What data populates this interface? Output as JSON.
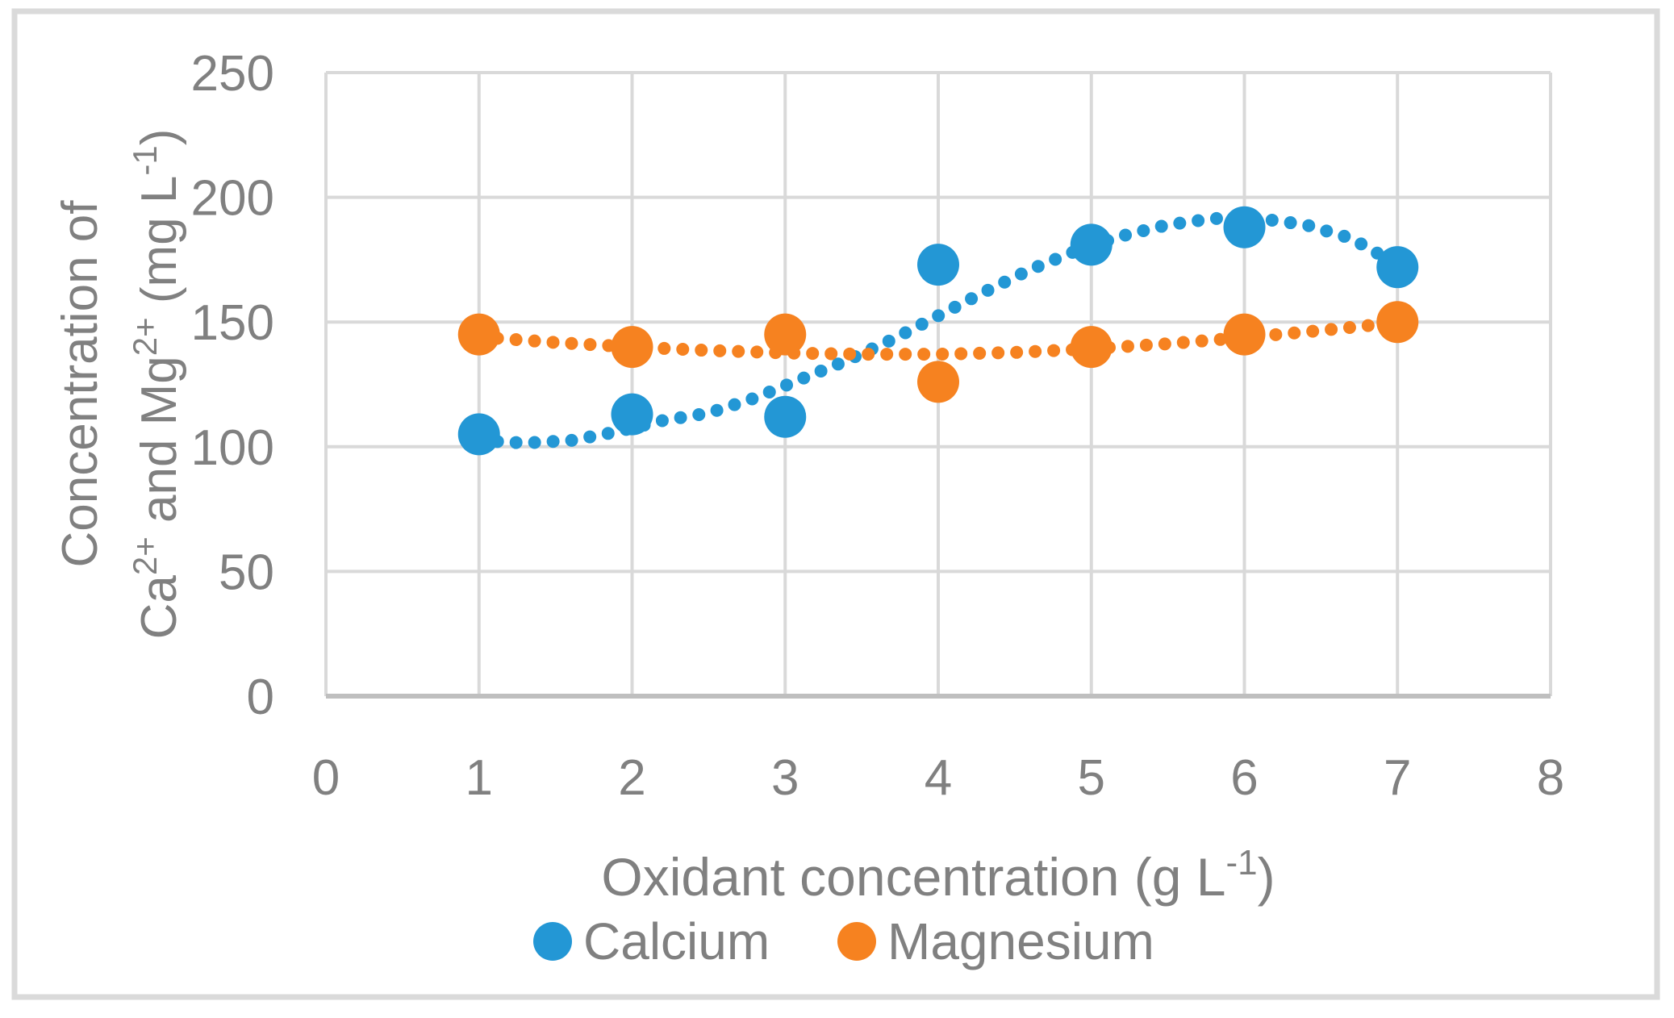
{
  "chart_data": {
    "type": "scatter",
    "title": "",
    "xlabel": "Oxidant concentration (g L-1)",
    "xlabel_parts": [
      "Oxidant concentration (g L",
      "-1",
      ")"
    ],
    "ylabel": "Concentration of Ca2+ and Mg2+ (mg L-1)",
    "ylabel_line1": "Concentration of",
    "ylabel_line2_parts": [
      "Ca",
      "2+",
      " and Mg",
      "2+",
      " (mg L",
      "-1",
      ")"
    ],
    "x": [
      1,
      2,
      3,
      4,
      5,
      6,
      7
    ],
    "xticks": [
      0,
      1,
      2,
      3,
      4,
      5,
      6,
      7,
      8
    ],
    "yticks": [
      0,
      50,
      100,
      150,
      200,
      250
    ],
    "xlim": [
      0,
      8
    ],
    "ylim": [
      0,
      250
    ],
    "grid": true,
    "legend_position": "bottom",
    "series": [
      {
        "name": "Calcium",
        "color": "#2397D5",
        "values": [
          105,
          113,
          112,
          173,
          181,
          188,
          172
        ],
        "trend": [
          [
            1.0,
            102.5
          ],
          [
            1.3,
            101.5
          ],
          [
            1.6,
            102.5
          ],
          [
            1.9,
            106
          ],
          [
            2.2,
            110.5
          ],
          [
            2.5,
            113.5
          ],
          [
            2.8,
            119.5
          ],
          [
            3.1,
            127
          ],
          [
            3.4,
            134.5
          ],
          [
            3.7,
            143
          ],
          [
            4.0,
            152.5
          ],
          [
            4.3,
            162
          ],
          [
            4.6,
            171
          ],
          [
            4.9,
            178.5
          ],
          [
            5.2,
            184.5
          ],
          [
            5.5,
            189
          ],
          [
            5.8,
            191.5
          ],
          [
            6.1,
            191.5
          ],
          [
            6.4,
            189
          ],
          [
            6.7,
            183.5
          ],
          [
            7.0,
            173
          ]
        ]
      },
      {
        "name": "Magnesium",
        "color": "#F68220",
        "values": [
          145,
          140,
          145,
          126,
          140,
          145,
          150
        ],
        "trend": [
          [
            1.0,
            144
          ],
          [
            1.5,
            141.8
          ],
          [
            2.0,
            140
          ],
          [
            2.5,
            138.6
          ],
          [
            3.0,
            137.6
          ],
          [
            3.5,
            137.1
          ],
          [
            4.0,
            137.1
          ],
          [
            4.5,
            137.8
          ],
          [
            5.0,
            139.3
          ],
          [
            5.5,
            141.3
          ],
          [
            6.0,
            143.8
          ],
          [
            6.5,
            146.6
          ],
          [
            7.0,
            149.8
          ]
        ]
      }
    ],
    "colors": {
      "gridline": "#D9D9D9",
      "axis_line": "#BFBFBF",
      "text": "#808080",
      "frame_border": "#DADADA",
      "background": "#FFFFFF"
    }
  }
}
